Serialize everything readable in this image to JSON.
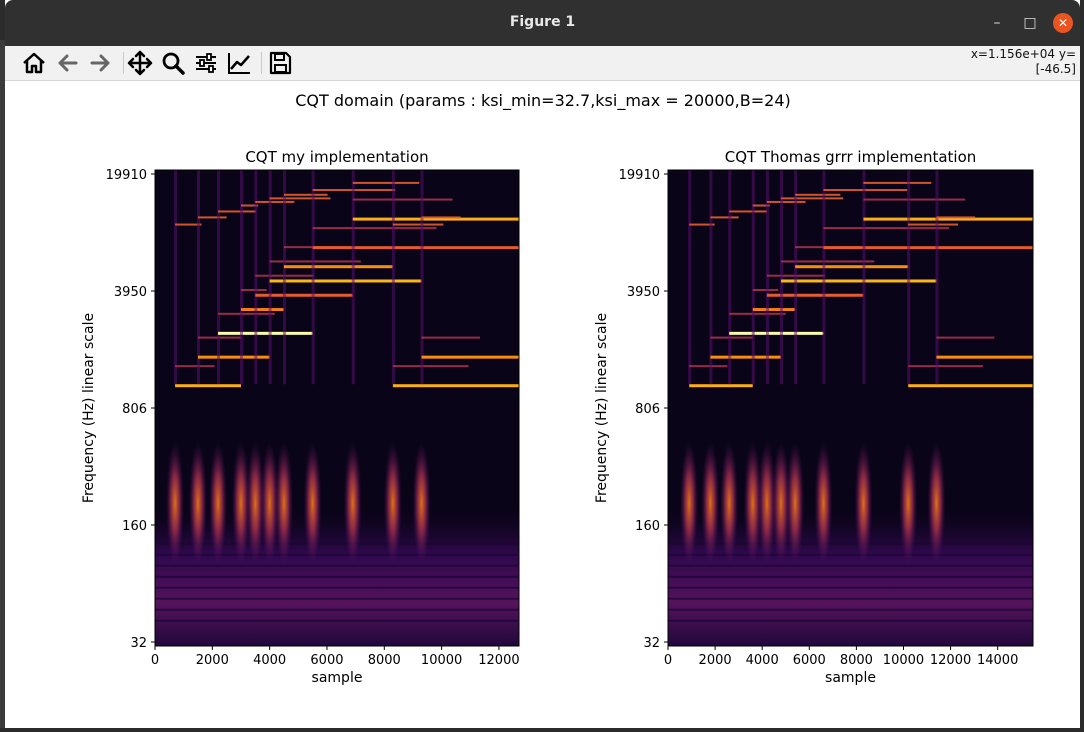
{
  "window": {
    "title": "Figure 1",
    "minimize_glyph": "–",
    "maximize_glyph": "□",
    "close_glyph": "✕"
  },
  "toolbar": {
    "buttons": [
      {
        "icon": "home-icon",
        "label": "Home"
      },
      {
        "icon": "back-arrow-icon",
        "label": "Back"
      },
      {
        "icon": "forward-arrow-icon",
        "label": "Forward"
      },
      {
        "icon": "pan-move-icon",
        "label": "Pan"
      },
      {
        "icon": "zoom-magnifier-icon",
        "label": "Zoom"
      },
      {
        "icon": "subplots-sliders-icon",
        "label": "Configure subplots"
      },
      {
        "icon": "edit-axes-chart-icon",
        "label": "Edit axis"
      },
      {
        "icon": "save-floppy-icon",
        "label": "Save"
      }
    ],
    "coords_line1": "x=1.156e+04 y=",
    "coords_line2": "[-46.5]"
  },
  "figure": {
    "suptitle": "CQT domain  (params : ksi_min=32.7,ksi_max = 20000,B=24)"
  },
  "chart_data": [
    {
      "type": "heatmap",
      "title": "CQT my implementation",
      "xlabel": "sample",
      "ylabel": "Frequency (Hz) linear scale",
      "xlim": [
        0,
        12700
      ],
      "xticks": [
        0,
        2000,
        4000,
        6000,
        8000,
        10000,
        12000
      ],
      "yticks": [
        "32",
        "160",
        "806",
        "3950",
        "19910"
      ],
      "colormap": "inferno",
      "note_onsets": [
        700,
        1500,
        2200,
        3000,
        3500,
        4000,
        4500,
        5500,
        6900,
        8300,
        9300
      ]
    },
    {
      "type": "heatmap",
      "title": "CQT Thomas grrr implementation",
      "xlabel": "sample",
      "ylabel": "Frequency (Hz) linear scale",
      "xlim": [
        0,
        15500
      ],
      "xticks": [
        0,
        2000,
        4000,
        6000,
        8000,
        10000,
        12000,
        14000
      ],
      "yticks": [
        "32",
        "160",
        "806",
        "3950",
        "19910"
      ],
      "colormap": "inferno",
      "note_onsets": [
        900,
        1800,
        2600,
        3600,
        4200,
        4800,
        5400,
        6600,
        8300,
        10200,
        11400
      ]
    }
  ]
}
